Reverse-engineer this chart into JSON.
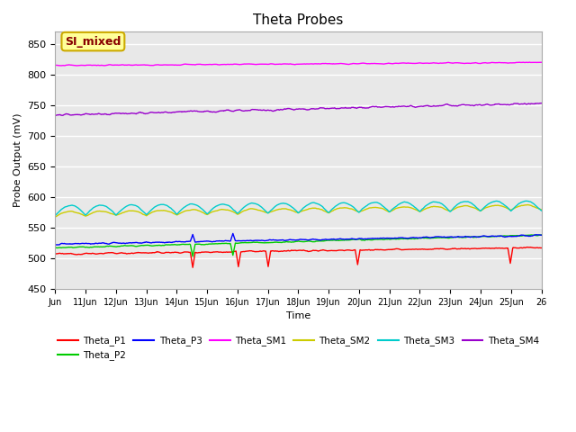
{
  "title": "Theta Probes",
  "xlabel": "Time",
  "ylabel": "Probe Output (mV)",
  "xlim_days": [
    10,
    26
  ],
  "ylim": [
    450,
    870
  ],
  "yticks": [
    450,
    500,
    550,
    600,
    650,
    700,
    750,
    800,
    850
  ],
  "bg_color": "#e8e8e8",
  "annotation_text": "SI_mixed",
  "annotation_bg": "#ffff99",
  "annotation_border": "#ccaa00",
  "annotation_text_color": "#880000",
  "series": {
    "Theta_P1": {
      "color": "#ff0000",
      "base": 507,
      "trend": 0.65,
      "noise": 1.5,
      "spikes": [
        14.52,
        16.02,
        17.0,
        19.95,
        24.97
      ],
      "spike_dir": -1,
      "spike_mag": 25
    },
    "Theta_P2": {
      "color": "#00cc00",
      "base": 517,
      "trend": 1.3,
      "noise": 1.2,
      "spikes": [
        14.52,
        15.85
      ],
      "spike_dir": -1,
      "spike_mag": 20
    },
    "Theta_P3": {
      "color": "#0000ff",
      "base": 523,
      "trend": 0.9,
      "noise": 1.5,
      "spikes": [
        14.52,
        15.85
      ],
      "spike_dir": 1,
      "spike_mag": 12
    },
    "Theta_SM1": {
      "color": "#ff00ff",
      "base": 815,
      "trend": 0.3,
      "noise": 1.0
    },
    "Theta_SM2": {
      "color": "#cccc00",
      "base": 568,
      "trend": 0.7,
      "noise": 1.0,
      "wave_amp": 8,
      "wave_period": 1.0
    },
    "Theta_SM3": {
      "color": "#00cccc",
      "base": 570,
      "trend": 0.5,
      "noise": 1.0,
      "wave_amp": 16,
      "wave_period": 1.0
    },
    "Theta_SM4": {
      "color": "#9900cc",
      "base": 734,
      "trend": 1.2,
      "noise": 2.0
    }
  },
  "legend_order": [
    "Theta_P1",
    "Theta_P2",
    "Theta_P3",
    "Theta_SM1",
    "Theta_SM2",
    "Theta_SM3",
    "Theta_SM4"
  ],
  "xtick_labels": [
    "Jun",
    "11Jun",
    "12Jun",
    "13Jun",
    "14Jun",
    "15Jun",
    "16Jun",
    "17Jun",
    "18Jun",
    "19Jun",
    "20Jun",
    "21Jun",
    "22Jun",
    "23Jun",
    "24Jun",
    "25Jun",
    "26"
  ],
  "xtick_positions": [
    10,
    11,
    12,
    13,
    14,
    15,
    16,
    17,
    18,
    19,
    20,
    21,
    22,
    23,
    24,
    25,
    26
  ]
}
